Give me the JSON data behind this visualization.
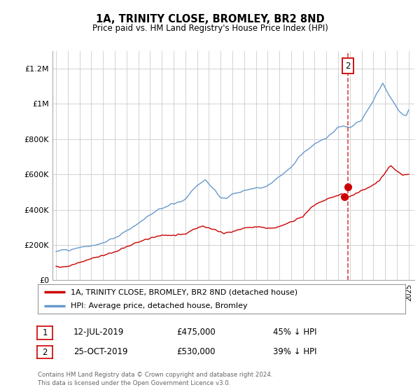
{
  "title": "1A, TRINITY CLOSE, BROMLEY, BR2 8ND",
  "subtitle": "Price paid vs. HM Land Registry's House Price Index (HPI)",
  "ylabel_ticks": [
    "£0",
    "£200K",
    "£400K",
    "£600K",
    "£800K",
    "£1M",
    "£1.2M"
  ],
  "ytick_values": [
    0,
    200000,
    400000,
    600000,
    800000,
    1000000,
    1200000
  ],
  "ylim": [
    0,
    1300000
  ],
  "xlim_start": 1994.7,
  "xlim_end": 2025.5,
  "legend_line1": "1A, TRINITY CLOSE, BROMLEY, BR2 8ND (detached house)",
  "legend_line2": "HPI: Average price, detached house, Bromley",
  "transaction1_date": "12-JUL-2019",
  "transaction1_price": "£475,000",
  "transaction1_pct": "45% ↓ HPI",
  "transaction2_date": "25-OCT-2019",
  "transaction2_price": "£530,000",
  "transaction2_pct": "39% ↓ HPI",
  "footer": "Contains HM Land Registry data © Crown copyright and database right 2024.\nThis data is licensed under the Open Government Licence v3.0.",
  "line_color_red": "#cc0000",
  "line_color_blue": "#6699cc",
  "dashed_color": "#dd4444",
  "background_color": "#ffffff",
  "grid_color": "#cccccc",
  "transaction1_x": 2019.53,
  "transaction2_x": 2019.82,
  "transaction1_y": 475000,
  "transaction2_y": 530000
}
